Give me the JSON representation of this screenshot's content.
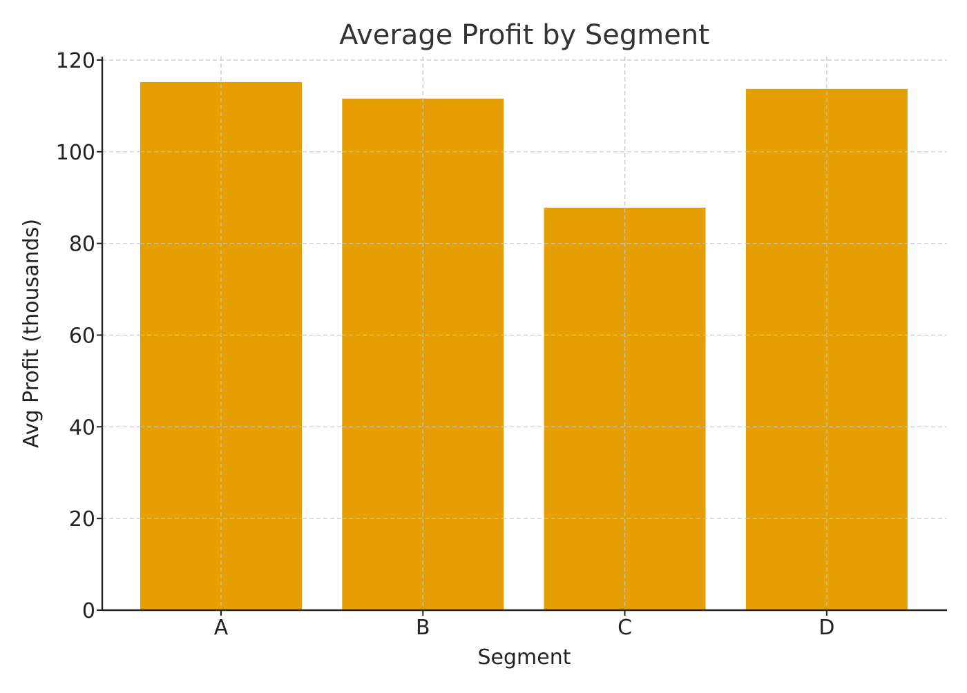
{
  "chart_data": {
    "type": "bar",
    "title": "Average Profit by Segment",
    "xlabel": "Segment",
    "ylabel": "Avg Profit (thousands)",
    "categories": [
      "A",
      "B",
      "C",
      "D"
    ],
    "values": [
      115.2,
      111.6,
      87.8,
      113.7
    ],
    "ylim": [
      0,
      120
    ],
    "yticks": [
      0,
      20,
      40,
      60,
      80,
      100,
      120
    ],
    "grid": true,
    "bar_color": "#E69F00"
  }
}
